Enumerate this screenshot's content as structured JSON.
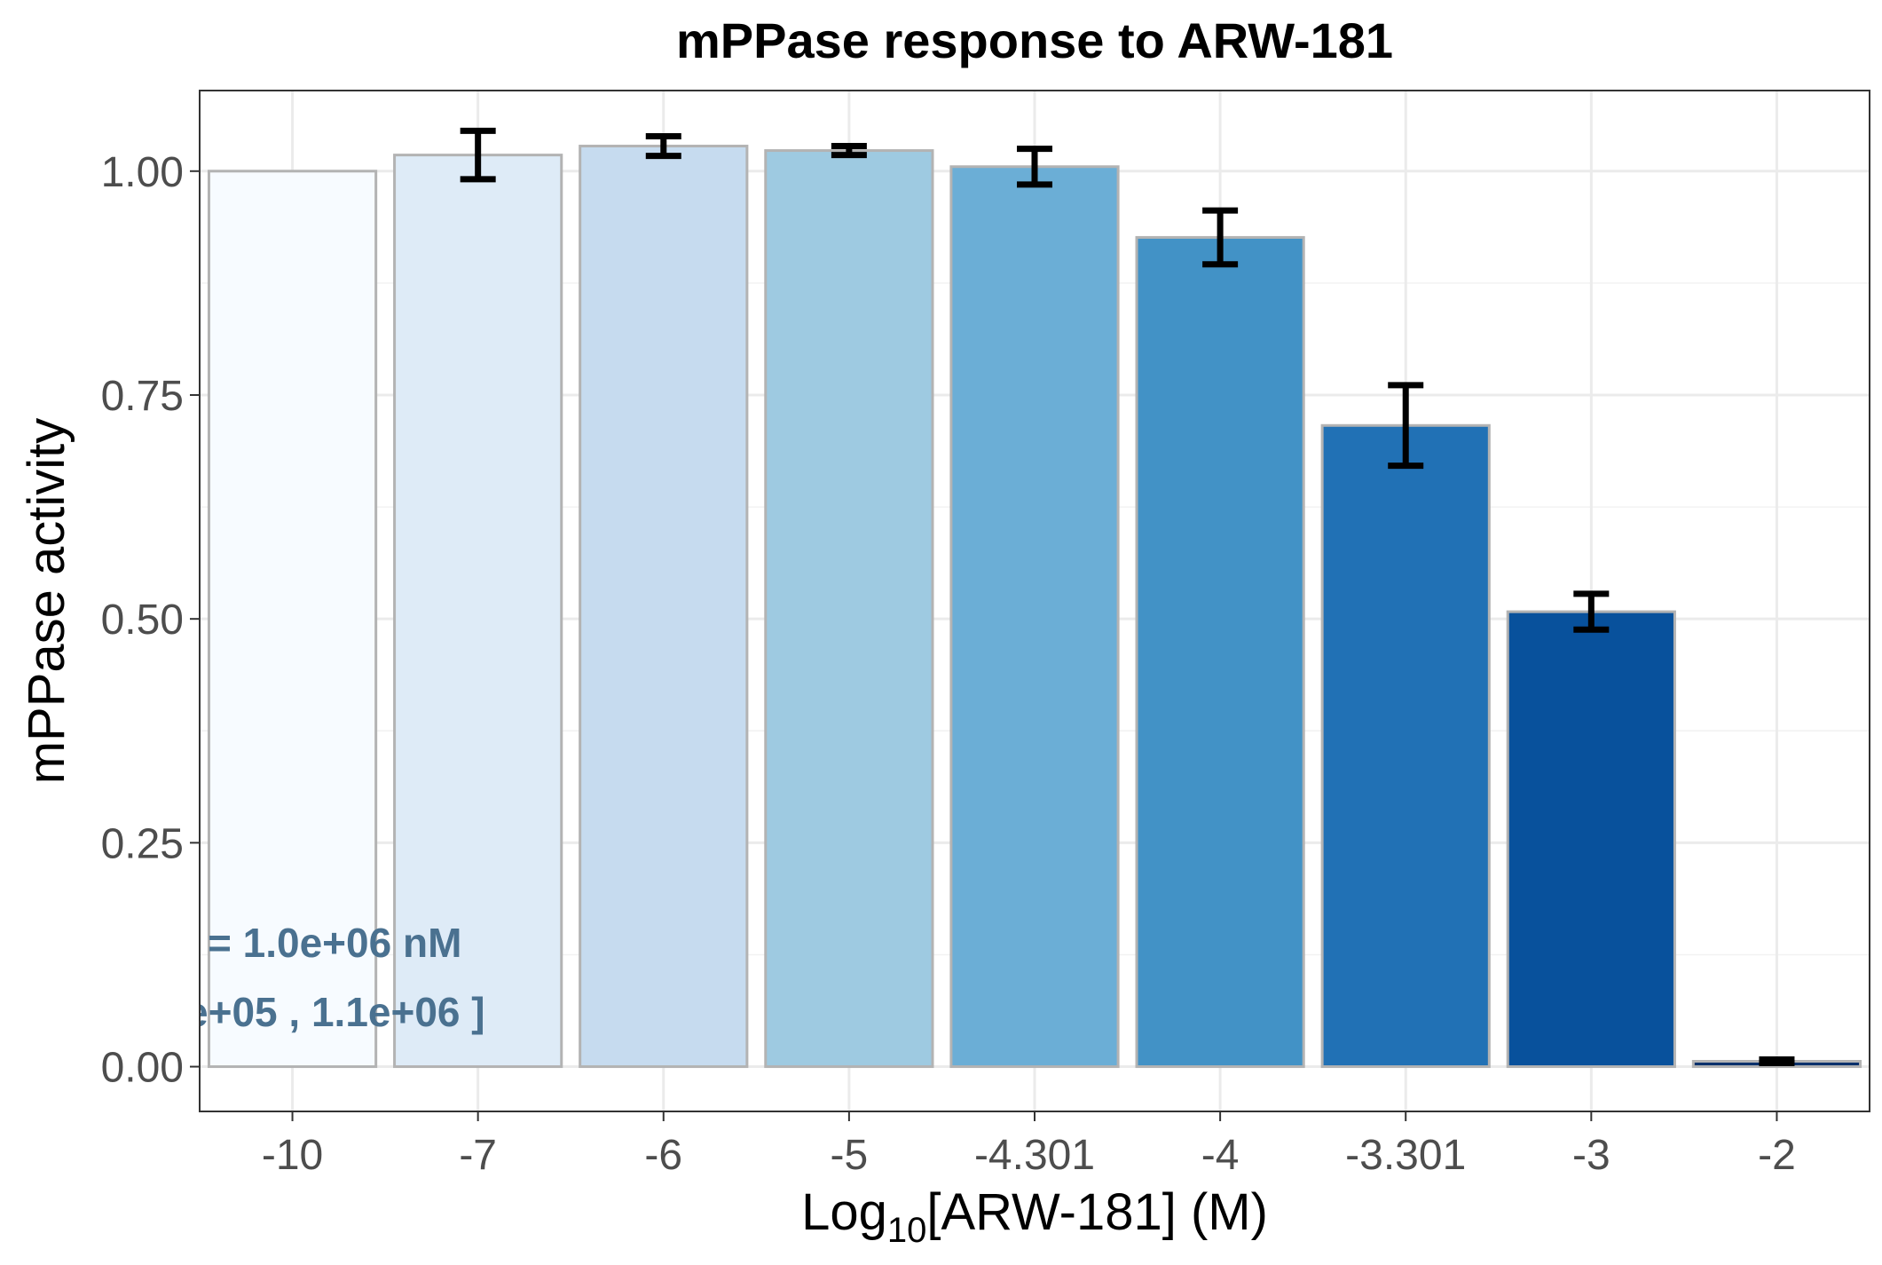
{
  "chart_data": {
    "type": "bar",
    "title": "mPPase response to ARW-181",
    "xlabel": {
      "prefix": "Log",
      "subscript": "10",
      "suffix": "[ARW-181] (M)"
    },
    "ylabel": "mPPase activity",
    "ylim": [
      -0.05,
      1.09
    ],
    "yticks": [
      "0.00",
      "0.25",
      "0.50",
      "0.75",
      "1.00"
    ],
    "categories": [
      "-10",
      "-7",
      "-6",
      "-5",
      "-4.301",
      "-4",
      "-3.301",
      "-3",
      "-2"
    ],
    "values": [
      1.0,
      1.018,
      1.028,
      1.023,
      1.005,
      0.926,
      0.716,
      0.508,
      0.006
    ],
    "errors": [
      0.0,
      0.027,
      0.011,
      0.005,
      0.02,
      0.03,
      0.045,
      0.02,
      0.002
    ],
    "colors": [
      "#f7fbff",
      "#deebf7",
      "#c6dbef",
      "#9ecae1",
      "#6baed6",
      "#4292c6",
      "#2171b5",
      "#08519c",
      "#08306b"
    ],
    "bar_border_color": "#b3b3b3",
    "grid": true,
    "annotations": [
      "= 1.0e+06 nM",
      "e+05 , 1.1e+06 ]"
    ],
    "annotation_color": "#4a7190"
  }
}
